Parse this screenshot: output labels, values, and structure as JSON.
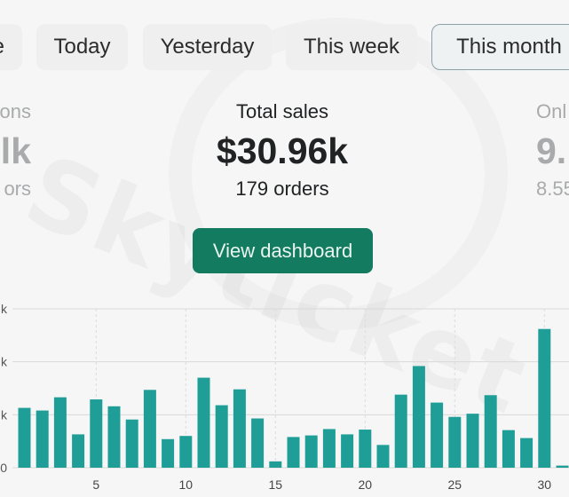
{
  "date_tabs": [
    {
      "label": "e"
    },
    {
      "label": "Today"
    },
    {
      "label": "Yesterday"
    },
    {
      "label": "This week"
    },
    {
      "label": "This month",
      "active": true
    }
  ],
  "metrics": {
    "left": {
      "label": "ons",
      "value": "lk",
      "sub": "ors"
    },
    "center": {
      "label": "Total sales",
      "value": "$30.96k",
      "sub": "179 orders"
    },
    "right": {
      "label": "Onl",
      "value": "9.",
      "sub": "8.55"
    }
  },
  "view_dashboard_label": "View dashboard",
  "watermark_text": "Skyticket",
  "colors": {
    "bar": "#1f9e98",
    "button": "#137b5f",
    "grid": "#d9d9d9"
  },
  "chart_data": {
    "type": "bar",
    "x": [
      1,
      2,
      3,
      4,
      5,
      6,
      7,
      8,
      9,
      10,
      11,
      12,
      13,
      14,
      15,
      16,
      17,
      18,
      19,
      20,
      21,
      22,
      23,
      24,
      25,
      26,
      27,
      28,
      29,
      30,
      31
    ],
    "values": [
      1.13,
      1.08,
      1.33,
      0.63,
      1.29,
      1.16,
      0.91,
      1.47,
      0.54,
      0.6,
      1.7,
      1.18,
      1.48,
      0.93,
      0.12,
      0.58,
      0.61,
      0.73,
      0.63,
      0.72,
      0.43,
      1.38,
      1.92,
      1.23,
      0.96,
      1.02,
      1.37,
      0.71,
      0.56,
      2.62,
      0.04
    ],
    "x_ticks": [
      5,
      10,
      15,
      20,
      25,
      30
    ],
    "y_ticks": [
      0,
      1,
      2,
      3
    ],
    "y_tick_labels": [
      "0",
      "k",
      "k",
      "k"
    ],
    "ylim": [
      0,
      3
    ],
    "grid": true,
    "title": "",
    "xlabel": "",
    "ylabel": ""
  }
}
